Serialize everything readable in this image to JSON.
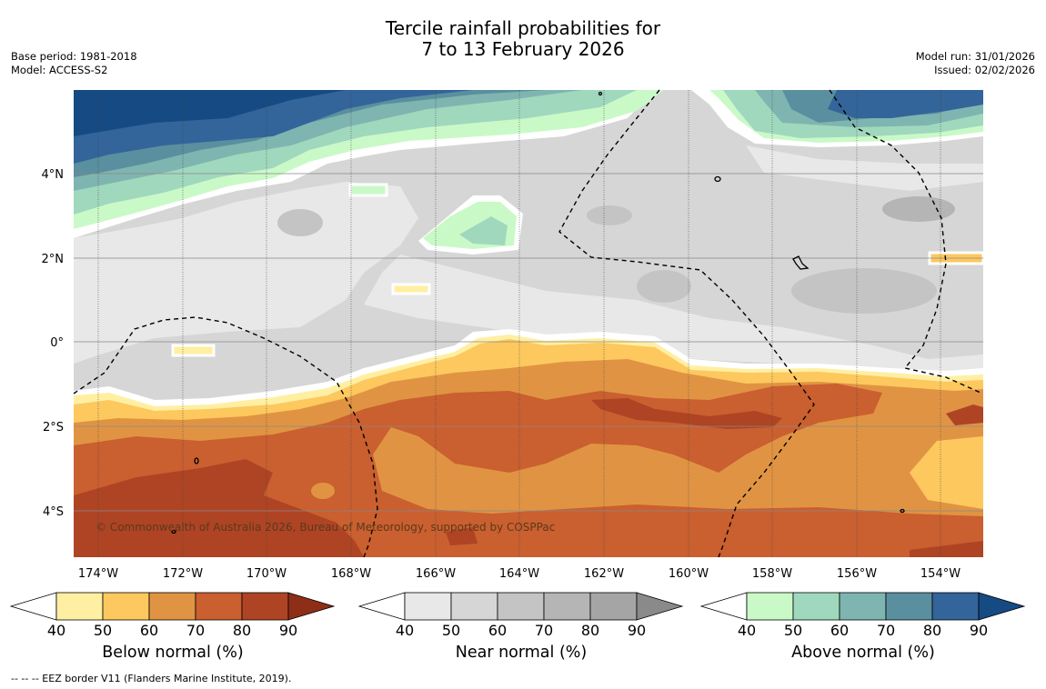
{
  "title": {
    "line1": "Tercile rainfall probabilities for",
    "line2": "7 to 13 February 2026"
  },
  "meta_left": {
    "base_period": "Base period: 1981-2018",
    "model": "Model: ACCESS-S2"
  },
  "meta_right": {
    "model_run": "Model run: 31/01/2026",
    "issued": "Issued: 02/02/2026"
  },
  "map": {
    "lat_labels": [
      "4°N",
      "2°N",
      "0°",
      "2°S",
      "4°S"
    ],
    "lon_labels": [
      "174°W",
      "172°W",
      "170°W",
      "168°W",
      "166°W",
      "164°W",
      "162°W",
      "160°W",
      "158°W",
      "156°W",
      "154°W"
    ],
    "copyright": "© Commonwealth of Australia 2026, Bureau of Meteorology, supported by COSPPac"
  },
  "colorbars": [
    {
      "title": "Below normal (%)",
      "ticks": [
        "40",
        "50",
        "60",
        "70",
        "80",
        "90"
      ],
      "colors": [
        "#ffefa2",
        "#fdc85e",
        "#e09443",
        "#ca5f2f",
        "#ae4424",
        "#8e2e17"
      ]
    },
    {
      "title": "Near normal (%)",
      "ticks": [
        "40",
        "50",
        "60",
        "70",
        "80",
        "90"
      ],
      "colors": [
        "#e8e8e8",
        "#d6d6d6",
        "#c4c4c4",
        "#b5b5b5",
        "#a5a5a5",
        "#8a8a8a"
      ]
    },
    {
      "title": "Above normal (%)",
      "ticks": [
        "40",
        "50",
        "60",
        "70",
        "80",
        "90"
      ],
      "colors": [
        "#caf9c8",
        "#a0d8be",
        "#7fb5b0",
        "#5a8f9f",
        "#33649a",
        "#154a82"
      ]
    }
  ],
  "footnote": "--  --  -- EEZ border V11 (Flanders Marine Institute, 2019).",
  "colors": {
    "below_40": "#ffefa2",
    "below_50": "#fdc85e",
    "below_60": "#e09443",
    "below_70": "#ca5f2f",
    "below_80": "#ae4424",
    "near_40": "#e8e8e8",
    "near_50": "#d6d6d6",
    "near_60": "#c4c4c4",
    "near_70": "#b5b5b5",
    "above_40": "#caf9c8",
    "above_50": "#a0d8be",
    "above_60": "#7fb5b0",
    "above_70": "#5a8f9f",
    "above_80": "#33649a",
    "above_90": "#154a82"
  }
}
